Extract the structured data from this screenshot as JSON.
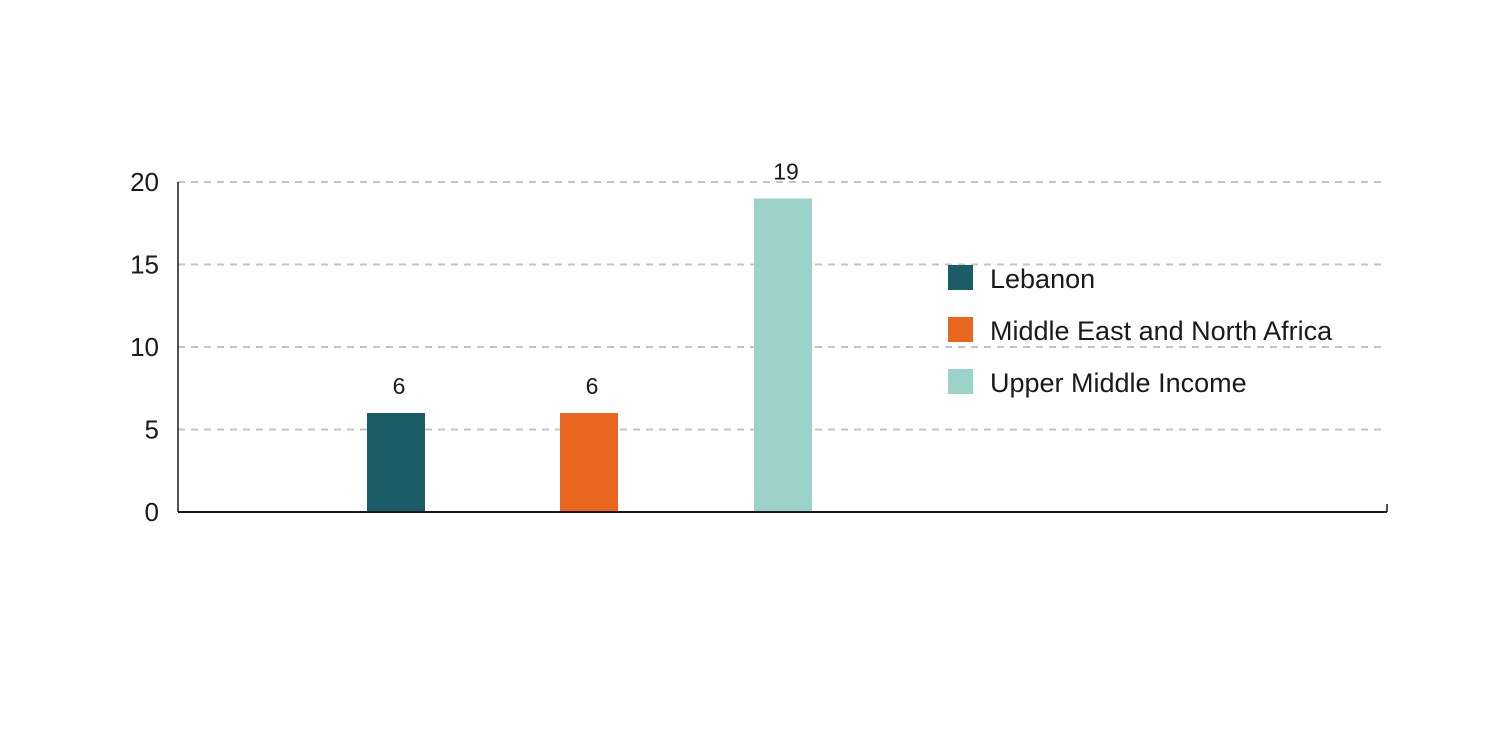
{
  "chart_data": {
    "type": "bar",
    "categories": [
      "Lebanon",
      "Middle East and North Africa",
      "Upper Middle Income"
    ],
    "values": [
      6,
      6,
      19
    ],
    "colors": [
      "#1b5c66",
      "#e8661f",
      "#9bd3cb"
    ],
    "data_labels": [
      "6",
      "6",
      "19"
    ],
    "title": "",
    "xlabel": "",
    "ylabel": "",
    "ylim": [
      0,
      20
    ],
    "yticks": [
      0,
      5,
      10,
      15,
      20
    ],
    "ytick_labels": [
      "0",
      "5",
      "10",
      "15",
      "20"
    ],
    "grid": "horizontal dashed",
    "legend": {
      "position": "right",
      "entries": [
        "Lebanon",
        "Middle East and North Africa",
        "Upper Middle Income"
      ]
    }
  }
}
